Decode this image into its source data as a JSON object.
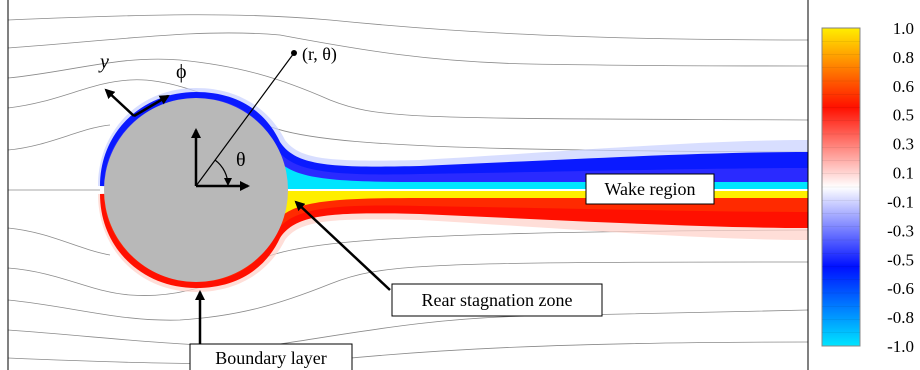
{
  "annotations": {
    "point_label": "(r, θ)",
    "y_axis_label": "y",
    "phi_label": "ϕ",
    "theta_label": "θ",
    "wake_region": "Wake region",
    "rear_stagnation": "Rear stagnation zone",
    "boundary_layer": "Boundary layer"
  },
  "colorbar": {
    "ticks": [
      "1.0",
      "0.8",
      "0.6",
      "0.5",
      "0.3",
      "0.1",
      "-0.1",
      "-0.3",
      "-0.5",
      "-0.6",
      "-0.8",
      "-1.0"
    ],
    "colors": [
      "#00e5ff",
      "#0000ff",
      "#ffffff",
      "#ff0000",
      "#ffee00"
    ]
  },
  "colors": {
    "cylinder": "#b8b8b8",
    "streamline": "#909090",
    "positive_high": "#ffee00",
    "positive_mid": "#ff2000",
    "negative_mid": "#0010ff",
    "negative_high": "#00e5ff"
  }
}
